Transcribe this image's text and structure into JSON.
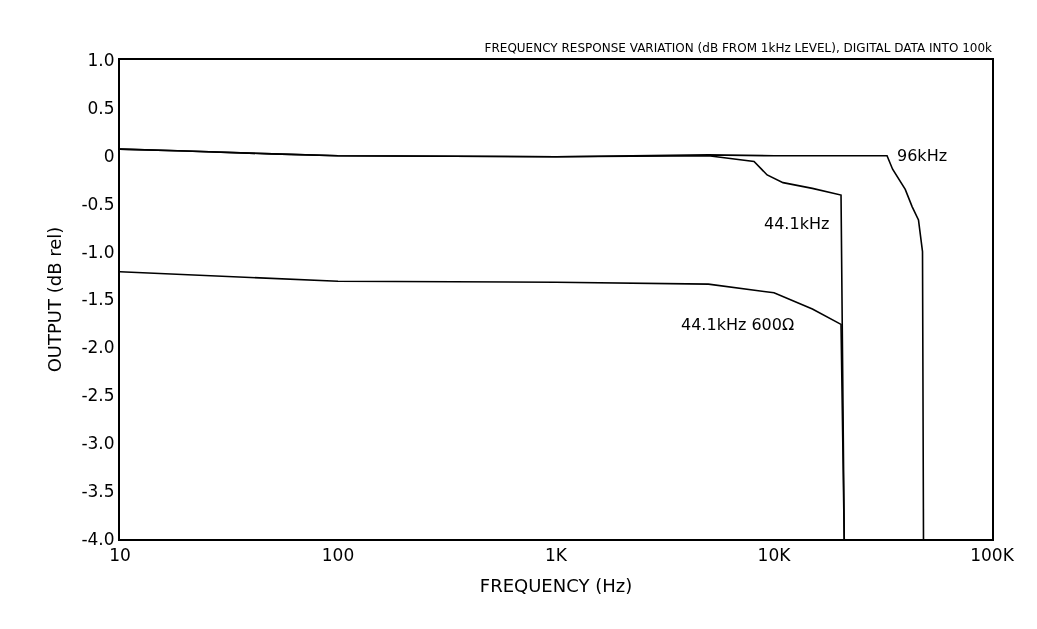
{
  "chart_data": {
    "type": "line",
    "title": "FREQUENCY RESPONSE VARIATION (dB FROM 1kHz LEVEL), DIGITAL DATA INTO 100k",
    "xlabel": "FREQUENCY (Hz)",
    "ylabel": "OUTPUT (dB rel)",
    "log": "x",
    "xlim": [
      10,
      100000
    ],
    "xticks": [
      10,
      100,
      {
        "value": 1000,
        "label": "1K"
      },
      {
        "value": 10000,
        "label": "10K"
      },
      {
        "value": 100000,
        "label": "100K"
      }
    ],
    "ylim": [
      -4.0,
      1.0
    ],
    "yticks": [
      {
        "value": 1,
        "label": "1.0"
      },
      0.5,
      0,
      -0.5,
      {
        "value": -1,
        "label": "-1.0"
      },
      -1.5,
      {
        "value": -2,
        "label": "-2.0"
      },
      -2.5,
      {
        "value": -3,
        "label": "-3.0"
      },
      -3.5,
      {
        "value": -4,
        "label": "-4.0"
      }
    ],
    "grid": false,
    "legend": false,
    "marker": "none",
    "line_style": "solid",
    "series": [
      {
        "name": "96kHz",
        "color": "#000000",
        "x": [
          10,
          20,
          50,
          100,
          1000,
          5000,
          10000,
          20000,
          33000,
          35000,
          40000,
          43000,
          46000,
          48000,
          48500
        ],
        "values": [
          0.07,
          0.05,
          0.02,
          0.0,
          -0.01,
          0.01,
          0.0,
          0.0,
          0.0,
          -0.14,
          -0.35,
          -0.53,
          -0.67,
          -1.0,
          -4.0
        ]
      },
      {
        "name": "44.1kHz",
        "color": "#000000",
        "x": [
          10,
          20,
          50,
          100,
          1000,
          5000,
          8100,
          9300,
          11000,
          15000,
          20300,
          21000
        ],
        "values": [
          0.07,
          0.05,
          0.02,
          0.0,
          -0.01,
          0.0,
          -0.06,
          -0.2,
          -0.28,
          -0.34,
          -0.41,
          -4.0
        ]
      },
      {
        "name": "44.1kHz 600Ω",
        "color": "#000000",
        "x": [
          10,
          100,
          1000,
          5000,
          10000,
          15000,
          20300,
          21000
        ],
        "values": [
          -1.21,
          -1.31,
          -1.32,
          -1.34,
          -1.43,
          -1.6,
          -1.76,
          -4.0
        ]
      }
    ]
  }
}
